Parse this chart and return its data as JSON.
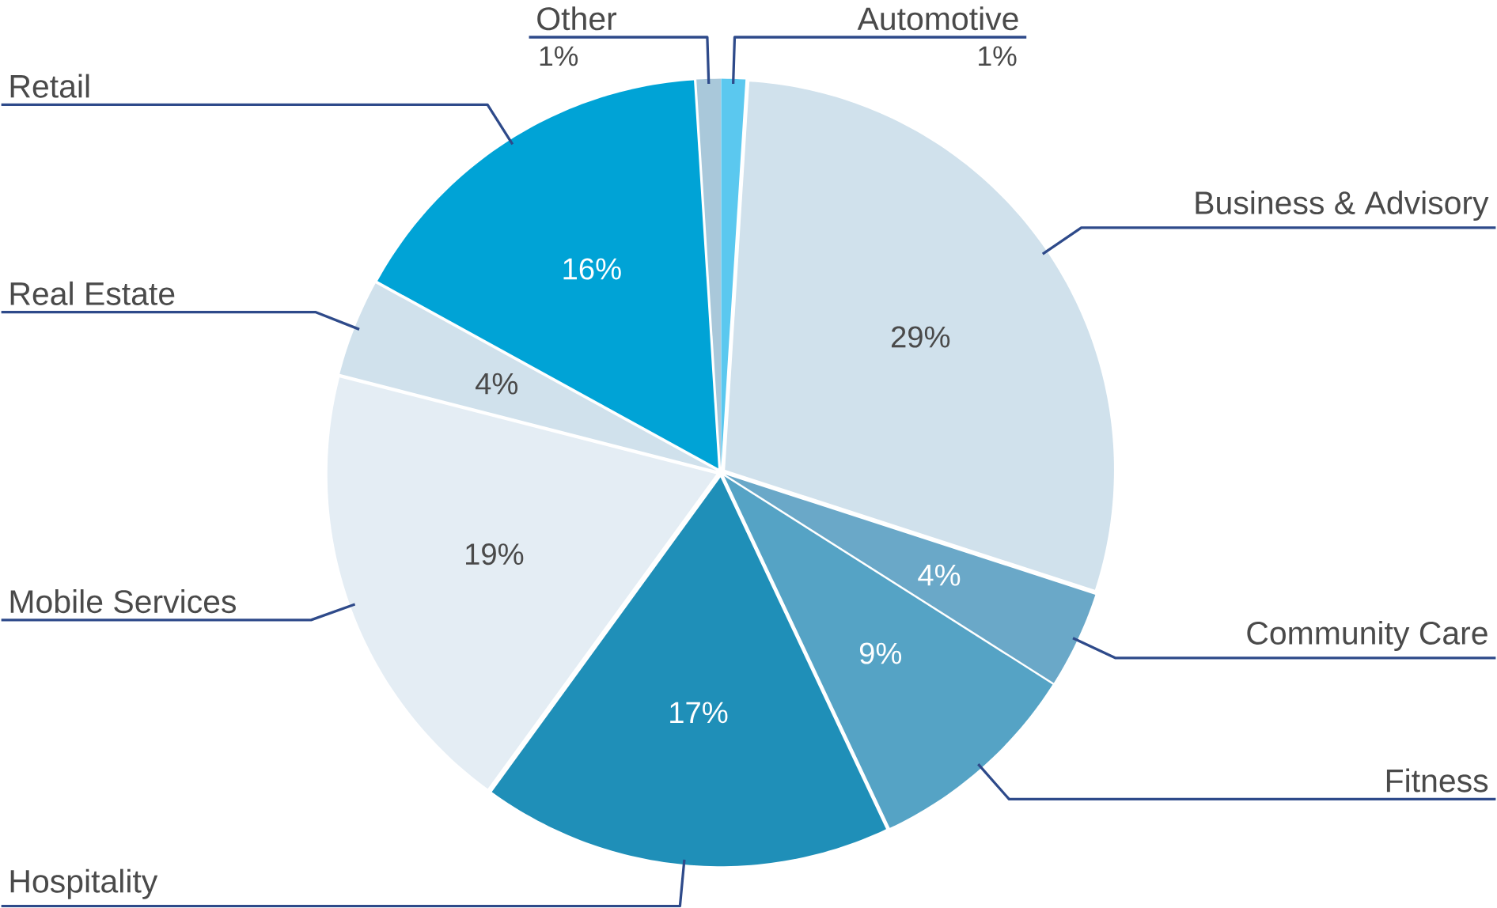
{
  "chart_data": {
    "type": "pie",
    "categories": [
      "Automotive",
      "Business & Advisory",
      "Community Care",
      "Fitness",
      "Hospitality",
      "Mobile Services",
      "Real Estate",
      "Retail",
      "Other"
    ],
    "values": [
      1,
      29,
      4,
      9,
      17,
      19,
      4,
      16,
      1
    ],
    "value_labels": [
      "1%",
      "29%",
      "4%",
      "9%",
      "17%",
      "19%",
      "4%",
      "16%",
      "1%"
    ],
    "colors": [
      "#5bc8ef",
      "#d0e1ec",
      "#6aa8c8",
      "#55a3c5",
      "#1f8fb8",
      "#e4edf4",
      "#d0e1ec",
      "#00a3d6",
      "#a9c8da"
    ]
  }
}
